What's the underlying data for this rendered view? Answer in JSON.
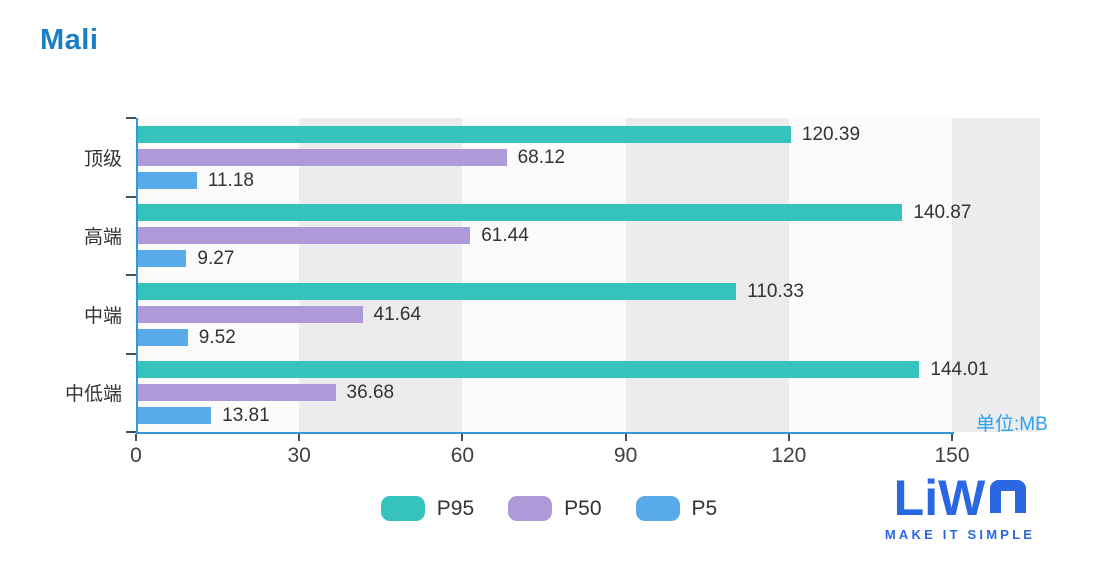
{
  "header": {
    "title": "Mali"
  },
  "axis": {
    "unit_label": "单位:MB"
  },
  "colors": {
    "p95": "#36c3bd",
    "p50": "#ae9ad8",
    "p5": "#58aae9",
    "axis_line": "#3697d8",
    "title": "#1a7ec5",
    "unit_label": "#2ba2ec",
    "band": "#ececee",
    "logo": "#2b67e2"
  },
  "chart_data": {
    "type": "bar",
    "orientation": "horizontal",
    "title": "Mali",
    "xlabel": "",
    "ylabel": "",
    "unit": "MB",
    "xlim": [
      0,
      150
    ],
    "x_ticks": [
      0,
      30,
      60,
      90,
      120,
      150
    ],
    "grid": "alternating vertical bands on 30-unit intervals",
    "legend_position": "bottom",
    "categories": [
      "顶级",
      "高端",
      "中端",
      "中低端"
    ],
    "series": [
      {
        "name": "P95",
        "color": "#36c3bd",
        "values": [
          120.39,
          140.87,
          110.33,
          144.01
        ]
      },
      {
        "name": "P50",
        "color": "#ae9ad8",
        "values": [
          68.12,
          61.44,
          41.64,
          36.68
        ]
      },
      {
        "name": "P5",
        "color": "#58aae9",
        "values": [
          11.18,
          9.27,
          9.52,
          13.81
        ]
      }
    ]
  },
  "legend": [
    {
      "label": "P95",
      "color": "#36c3bd"
    },
    {
      "label": "P50",
      "color": "#ae9ad8"
    },
    {
      "label": "P5",
      "color": "#58aae9"
    }
  ],
  "logo": {
    "text": "LiWA",
    "tagline": "MAKE IT SIMPLE"
  }
}
